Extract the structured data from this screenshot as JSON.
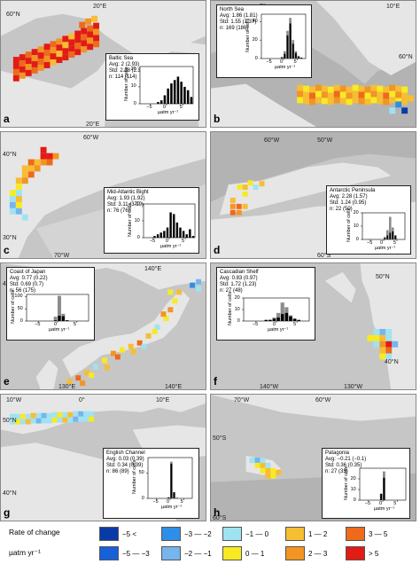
{
  "panels": [
    {
      "id": "a",
      "letter": "a",
      "coords": [
        "60°N",
        "20°E",
        "20°E"
      ],
      "stats": {
        "title": "Baltic Sea",
        "avg": "Avg: 2 (2.93)",
        "std": "Std: 2.38 (2.38)",
        "n": "n: 114 (114)"
      },
      "ylabel": "Number of cells",
      "xlabel": "µatm yr⁻¹",
      "xticks": [
        "−5",
        "0",
        "5"
      ],
      "yticks": [
        "0",
        "10",
        "20"
      ],
      "hist": {
        "xlim": [
          -8,
          8
        ],
        "ymax": 22,
        "gray": [
          0,
          0,
          0,
          0,
          0,
          0,
          0,
          0,
          0,
          0,
          0,
          0,
          0,
          0,
          0,
          0
        ],
        "black": [
          0,
          0,
          0,
          0,
          0,
          1,
          2,
          5,
          9,
          12,
          14,
          16,
          13,
          10,
          8,
          4
        ]
      }
    },
    {
      "id": "b",
      "letter": "b",
      "coords": [
        "0°",
        "10°E",
        "60°N"
      ],
      "stats": {
        "title": "North Sea",
        "avg": "Avg: 1.86 (1.81)",
        "std": "Std: 1.55 (1.37)",
        "n": "n: 169 (186)"
      },
      "ylabel": "Number of cells",
      "xlabel": "µatm yr⁻¹",
      "xticks": [
        "−5",
        "0",
        "5"
      ],
      "yticks": [
        "0",
        "20",
        "40"
      ],
      "hist": {
        "xlim": [
          -8,
          8
        ],
        "ymax": 48,
        "gray": [
          0,
          0,
          0,
          0,
          0,
          0,
          0,
          2,
          8,
          30,
          44,
          20,
          8,
          3,
          1,
          0
        ],
        "black": [
          0,
          0,
          0,
          0,
          0,
          0,
          0,
          1,
          5,
          25,
          38,
          16,
          6,
          2,
          1,
          0
        ]
      }
    },
    {
      "id": "c",
      "letter": "c",
      "coords": [
        "60°W",
        "40°N",
        "30°N",
        "70°W"
      ],
      "stats": {
        "title": "Mid-Atlantic Bight",
        "avg": "Avg: 1.93 (1.92)",
        "std": "Std: 3.11 (3.19)",
        "n": "n: 76 (76)"
      },
      "ylabel": "Number of cells",
      "xlabel": "µatm yr⁻¹",
      "xticks": [
        "−5",
        "0",
        "5"
      ],
      "yticks": [
        "0",
        "10",
        "20"
      ],
      "hist": {
        "xlim": [
          -8,
          8
        ],
        "ymax": 20,
        "gray": [
          0,
          0,
          0,
          0,
          0,
          0,
          0,
          0,
          0,
          0,
          0,
          0,
          0,
          0,
          0,
          0
        ],
        "black": [
          0,
          0,
          0,
          1,
          2,
          3,
          4,
          6,
          15,
          14,
          9,
          6,
          4,
          2,
          5,
          1
        ]
      }
    },
    {
      "id": "d",
      "letter": "d",
      "coords": [
        "60°W",
        "50°W",
        "60°S"
      ],
      "stats": {
        "title": "Antarctic Peninsula",
        "avg": "Avg: 2.28 (1.57)",
        "std": "Std: 1.24 (0.95)",
        "n": "n: 22 (50)"
      },
      "ylabel": "Number of cells",
      "xlabel": "µatm yr⁻¹",
      "xticks": [
        "−5",
        "0",
        "5"
      ],
      "yticks": [
        "0",
        "10",
        "20"
      ],
      "hist": {
        "xlim": [
          -8,
          8
        ],
        "ymax": 20,
        "gray": [
          0,
          0,
          0,
          0,
          0,
          0,
          0,
          0,
          2,
          7,
          17,
          9,
          3,
          0,
          0,
          0
        ],
        "black": [
          0,
          0,
          0,
          0,
          0,
          0,
          0,
          0,
          1,
          3,
          5,
          6,
          3,
          0,
          0,
          0
        ]
      }
    },
    {
      "id": "e",
      "letter": "e",
      "coords": [
        "140°E",
        "40°N",
        "130°E",
        "140°E"
      ],
      "stats": {
        "title": "Coast of Japan",
        "avg": "Avg: 0.77 (0.22)",
        "std": "Std: 0.69 (0.7)",
        "n": "n: 56 (175)"
      },
      "ylabel": "Number of cells",
      "xlabel": "µatm yr⁻¹",
      "xticks": [
        "−5",
        "0",
        "5"
      ],
      "yticks": [
        "0",
        "50",
        "100"
      ],
      "hist": {
        "xlim": [
          -8,
          8
        ],
        "ymax": 110,
        "gray": [
          0,
          0,
          0,
          0,
          0,
          0,
          0,
          18,
          104,
          30,
          4,
          0,
          0,
          0,
          0,
          0
        ],
        "black": [
          0,
          0,
          0,
          0,
          0,
          0,
          0,
          3,
          22,
          20,
          3,
          0,
          0,
          0,
          0,
          0
        ]
      }
    },
    {
      "id": "f",
      "letter": "f",
      "coords": [
        "50°N",
        "140°W",
        "130°W",
        "40°N"
      ],
      "stats": {
        "title": "Cascadian Shelf",
        "avg": "Avg: 0.83 (0.97)",
        "std": "Std: 1.72 (1.23)",
        "n": "n: 27 (48)"
      },
      "ylabel": "Number of cells",
      "xlabel": "µatm yr⁻¹",
      "xticks": [
        "−5",
        "0",
        "5"
      ],
      "yticks": [
        "0",
        "10",
        "20"
      ],
      "hist": {
        "xlim": [
          -8,
          8
        ],
        "ymax": 20,
        "gray": [
          0,
          0,
          0,
          0,
          0,
          0,
          1,
          3,
          7,
          16,
          12,
          5,
          2,
          0,
          0,
          0
        ],
        "black": [
          0,
          0,
          0,
          0,
          0,
          1,
          1,
          2,
          3,
          6,
          7,
          4,
          2,
          1,
          0,
          0
        ]
      }
    },
    {
      "id": "g",
      "letter": "g",
      "coords": [
        "10°W",
        "0°",
        "10°E",
        "50°N",
        "40°N"
      ],
      "stats": {
        "title": "English Channel",
        "avg": "Avg: 0.03 (0.39)",
        "std": "Std: 0.34 (0.39)",
        "n": "n: 86 (89)"
      },
      "ylabel": "Number of cells",
      "xlabel": "µatm yr⁻¹",
      "xticks": [
        "−5",
        "0",
        "5"
      ],
      "yticks": [
        "0",
        "50"
      ],
      "hist": {
        "xlim": [
          -8,
          8
        ],
        "ymax": 80,
        "gray": [
          0,
          0,
          0,
          0,
          0,
          0,
          0,
          2,
          72,
          12,
          1,
          0,
          0,
          0,
          0,
          0
        ],
        "black": [
          0,
          0,
          0,
          0,
          0,
          0,
          0,
          2,
          68,
          12,
          1,
          0,
          0,
          0,
          0,
          0
        ]
      }
    },
    {
      "id": "h",
      "letter": "h",
      "coords": [
        "70°W",
        "60°W",
        "50°S",
        "60°S"
      ],
      "stats": {
        "title": "Patagonia",
        "avg": "Avg: −0.21 (−0.1)",
        "std": "Std: 0.36 (0.35)",
        "n": "n: 27 (33)"
      },
      "ylabel": "Number of cells",
      "xlabel": "µatm yr⁻¹",
      "xticks": [
        "−5",
        "0",
        "5"
      ],
      "yticks": [
        "0",
        "10",
        "20"
      ],
      "hist": {
        "xlim": [
          -8,
          8
        ],
        "ymax": 30,
        "gray": [
          0,
          0,
          0,
          0,
          0,
          0,
          0,
          6,
          27,
          0,
          0,
          0,
          0,
          0,
          0,
          0
        ],
        "black": [
          0,
          0,
          0,
          0,
          0,
          0,
          0,
          6,
          21,
          0,
          0,
          0,
          0,
          0,
          0,
          0
        ]
      }
    }
  ],
  "legend": {
    "title_rate": "Rate of change",
    "title_unit": "µatm yr⁻¹",
    "row1": [
      {
        "label": "−5 <",
        "color": "#0a3aa8"
      },
      {
        "label": "−3 — −2",
        "color": "#2f8ee8"
      },
      {
        "label": "−1 — 0",
        "color": "#9fe3f2"
      },
      {
        "label": "1 — 2",
        "color": "#f7bd33"
      },
      {
        "label": "3 — 5",
        "color": "#ef6a1a"
      }
    ],
    "row2": [
      {
        "label": "−5 — −3",
        "color": "#1761d8"
      },
      {
        "label": "−2 — −1",
        "color": "#76b5ee"
      },
      {
        "label": "0 — 1",
        "color": "#f8ea22"
      },
      {
        "label": "2 — 3",
        "color": "#f39423"
      },
      {
        "label": "> 5",
        "color": "#e21b14"
      }
    ]
  }
}
